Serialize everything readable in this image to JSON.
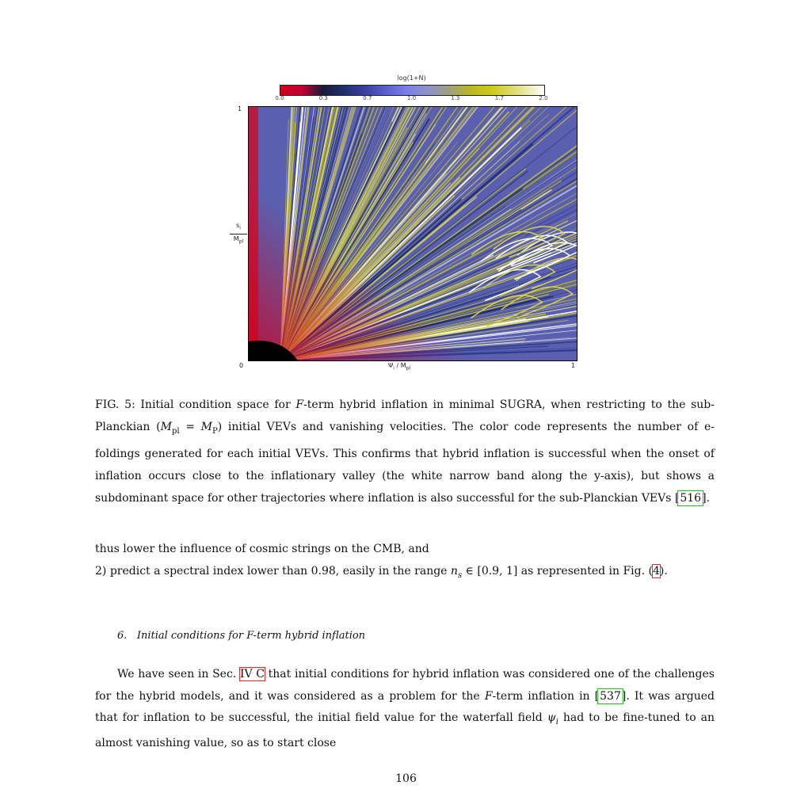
{
  "figure": {
    "colorbar": {
      "title": "log(1+N)",
      "ticks": [
        "0.0",
        "0.3",
        "0.7",
        "1.0",
        "1.3",
        "1.7",
        "2.0"
      ],
      "colors": [
        "#d0001c",
        "#1a1a3a",
        "#3a3fa0",
        "#7a80e8",
        "#b8b820",
        "#ffffff"
      ]
    },
    "y_axis": {
      "label_top": "s",
      "label_top_sub": "i",
      "label_bottom": "M",
      "label_bottom_sub": "pl",
      "tick_min": "0",
      "tick_max": "1"
    },
    "x_axis": {
      "label": "Ψ",
      "label_sub": "i",
      "label_rest": "/ M",
      "label_rest_sub": "pl",
      "tick_max": "1"
    }
  },
  "caption": {
    "p1": "FIG. 5: Initial condition space for ",
    "F": "F",
    "p2": "-term hybrid inflation in minimal SUGRA, when restricting to the sub-Planckian (",
    "Mpl": "M",
    "pl": "pl",
    "eq": " = ",
    "MP": "M",
    "P": "P",
    "p3": ") initial VEVs and vanishing velocities. The color code represents the number of e-foldings generated for each initial VEVs. This confirms that hybrid inflation is successful when the onset of inflation occurs close to the inflationary valley (the white narrow band along the y-axis), but shows a subdominant space for other trajectories where inflation is also successful for the sub-Planckian VEVs ",
    "ref": "516",
    "p4": "."
  },
  "para1": {
    "line1": "thus lower the influence of cosmic strings on the CMB, and",
    "line2a": "2) predict a spectral index lower than 0.98, easily in the range ",
    "ns": "n",
    "ns_sub": "s",
    "line2b": " ∈ [0.9, 1] as represented in Fig. (",
    "figref": "4",
    "line2c": ")."
  },
  "section": {
    "number": "6.",
    "title_a": "Initial conditions for ",
    "title_F": "F",
    "title_b": "-term hybrid inflation"
  },
  "para2": {
    "a": "We have seen in Sec. ",
    "secref": "IV C",
    "b": " that initial conditions for hybrid inflation was considered one of the challenges for the hybrid models, and it was considered as a problem for the ",
    "F": "F",
    "c": "-term inflation in [",
    "ref": "537",
    "d": "]. It was argued that for inflation to be successful, the initial field value for the waterfall field ",
    "psi": "ψ",
    "psi_sub": "i",
    "e": " had to be fine-tuned to an almost vanishing value, so as to start close"
  },
  "page_number": "106"
}
